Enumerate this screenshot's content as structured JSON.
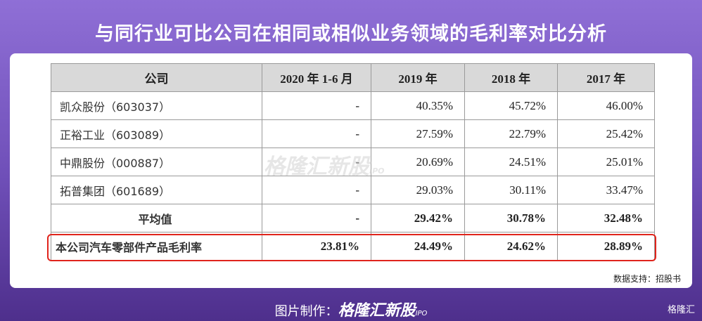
{
  "title": "与同行业可比公司在相同或相似业务领域的毛利率对比分析",
  "table": {
    "header": [
      "公司",
      "2020 年 1-6 月",
      "2019 年",
      "2018 年",
      "2017 年"
    ],
    "rows": [
      [
        "凯众股份（603037）",
        "-",
        "40.35%",
        "45.72%",
        "46.00%"
      ],
      [
        "正裕工业（603089）",
        "-",
        "27.59%",
        "22.79%",
        "25.42%"
      ],
      [
        "中鼎股份（000887）",
        "-",
        "20.69%",
        "24.51%",
        "25.01%"
      ],
      [
        "拓普集团（601689）",
        "-",
        "29.03%",
        "30.11%",
        "33.47%"
      ],
      [
        "平均值",
        "-",
        "29.42%",
        "30.78%",
        "32.48%"
      ],
      [
        "本公司汽车零部件产品毛利率",
        "23.81%",
        "24.49%",
        "24.62%",
        "28.89%"
      ]
    ]
  },
  "source": "数据支持：招股书",
  "watermark": {
    "text": "格隆汇新股",
    "suffix": "IPO"
  },
  "footer": {
    "label": "图片制作：",
    "brand": "格隆汇新股",
    "suffix": "IPO"
  },
  "logo": "格隆汇"
}
